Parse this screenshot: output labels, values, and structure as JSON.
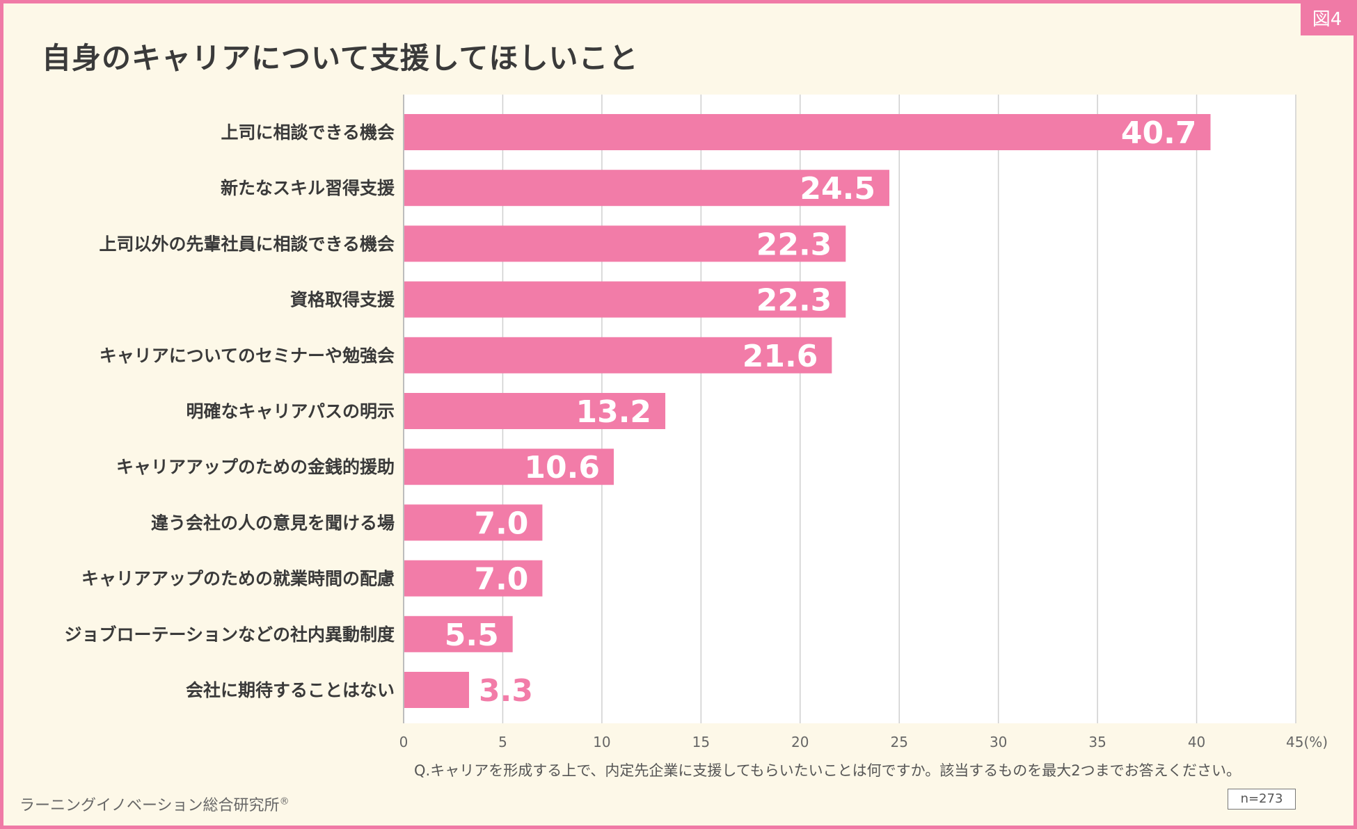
{
  "figure_badge": "図4",
  "chart_data": {
    "type": "bar",
    "orientation": "horizontal",
    "title": "自身のキャリアについて支援してほしいこと",
    "categories": [
      "上司に相談できる機会",
      "新たなスキル習得支援",
      "上司以外の先輩社員に相談できる機会",
      "資格取得支援",
      "キャリアについてのセミナーや勉強会",
      "明確なキャリアパスの明示",
      "キャリアアップのための金銭的援助",
      "違う会社の人の意見を聞ける場",
      "キャリアアップのための就業時間の配慮",
      "ジョブローテーションなどの社内異動制度",
      "会社に期待することはない"
    ],
    "values": [
      40.7,
      24.5,
      22.3,
      22.3,
      21.6,
      13.2,
      10.6,
      7.0,
      7.0,
      5.5,
      3.3
    ],
    "value_labels": [
      "40.7",
      "24.5",
      "22.3",
      "22.3",
      "21.6",
      "13.2",
      "10.6",
      "7.0",
      "7.0",
      "5.5",
      "3.3"
    ],
    "xlim": [
      0,
      45
    ],
    "x_ticks": [
      "0",
      "5",
      "10",
      "15",
      "20",
      "25",
      "30",
      "35",
      "40",
      "45(%)"
    ],
    "grid": true,
    "bar_color": "#f27ca8"
  },
  "question": "Q.キャリアを形成する上で、内定先企業に支援してもらいたいことは何ですか。該当するものを最大2つまでお答えください。",
  "brand": "ラーニングイノベーション総合研究所",
  "brand_mark": "®",
  "sample_size": "n=273"
}
